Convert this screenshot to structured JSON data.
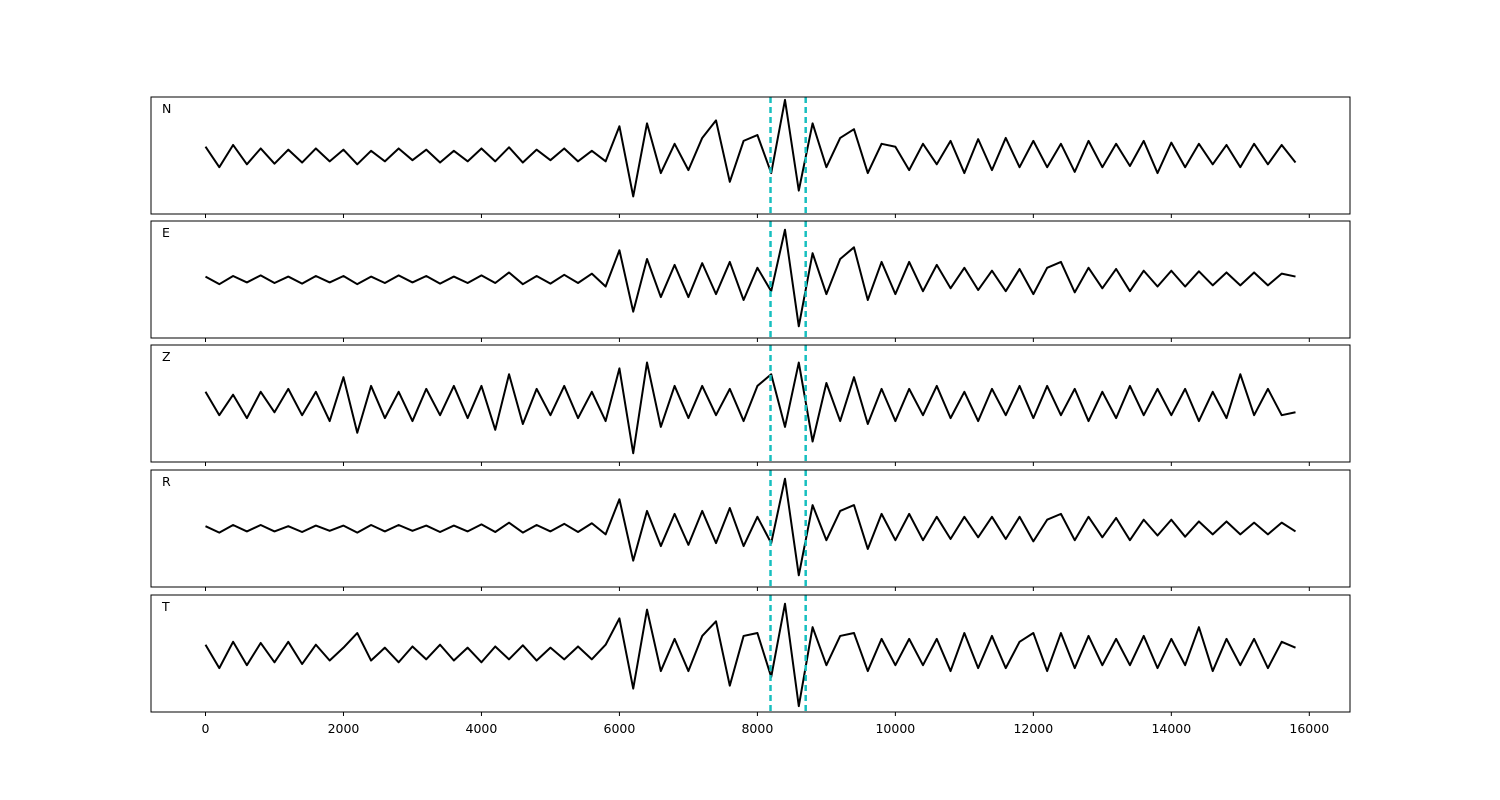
{
  "chart_data": [
    {
      "type": "line",
      "label": "N",
      "color": "#000000",
      "vline_color": "#17bfbf",
      "vlines": [
        8190,
        8700
      ],
      "xlim": [
        -790,
        16590
      ],
      "ylim": [
        -1,
        1
      ],
      "xticks": [
        0,
        2000,
        4000,
        6000,
        8000,
        10000,
        12000,
        14000,
        16000
      ],
      "x": [
        0,
        200,
        400,
        600,
        800,
        1000,
        1200,
        1400,
        1600,
        1800,
        2000,
        2200,
        2400,
        2600,
        2800,
        3000,
        3200,
        3400,
        3600,
        3800,
        4000,
        4200,
        4400,
        4600,
        4800,
        5000,
        5200,
        5400,
        5600,
        5800,
        6000,
        6200,
        6400,
        6600,
        6800,
        7000,
        7200,
        7400,
        7600,
        7800,
        8000,
        8200,
        8400,
        8600,
        8800,
        9000,
        9200,
        9400,
        9600,
        9800,
        10000,
        10200,
        10400,
        10600,
        10800,
        11000,
        11200,
        11400,
        11600,
        11800,
        12000,
        12200,
        12400,
        12600,
        12800,
        13000,
        13200,
        13400,
        13600,
        13800,
        14000,
        14200,
        14400,
        14600,
        14800,
        15000,
        15200,
        15400,
        15600,
        15800
      ],
      "values": [
        0.15,
        -0.2,
        0.18,
        -0.15,
        0.12,
        -0.14,
        0.1,
        -0.12,
        0.12,
        -0.1,
        0.1,
        -0.15,
        0.08,
        -0.1,
        0.12,
        -0.08,
        0.1,
        -0.12,
        0.08,
        -0.1,
        0.12,
        -0.1,
        0.14,
        -0.12,
        0.1,
        -0.08,
        0.12,
        -0.1,
        0.08,
        -0.1,
        0.5,
        -0.7,
        0.55,
        -0.3,
        0.2,
        -0.25,
        0.3,
        0.6,
        -0.45,
        0.25,
        0.35,
        -0.3,
        0.95,
        -0.6,
        0.55,
        -0.2,
        0.3,
        0.45,
        -0.3,
        0.2,
        0.15,
        -0.25,
        0.2,
        -0.15,
        0.25,
        -0.3,
        0.28,
        -0.25,
        0.3,
        -0.2,
        0.25,
        -0.2,
        0.2,
        -0.28,
        0.25,
        -0.2,
        0.2,
        -0.18,
        0.25,
        -0.3,
        0.22,
        -0.2,
        0.2,
        -0.15,
        0.18,
        -0.2,
        0.2,
        -0.15,
        0.18,
        -0.12
      ]
    },
    {
      "type": "line",
      "label": "E",
      "color": "#000000",
      "vline_color": "#17bfbf",
      "vlines": [
        8190,
        8700
      ],
      "xlim": [
        -790,
        16590
      ],
      "ylim": [
        -1,
        1
      ],
      "xticks": [
        0,
        2000,
        4000,
        6000,
        8000,
        10000,
        12000,
        14000,
        16000
      ],
      "x": [
        0,
        200,
        400,
        600,
        800,
        1000,
        1200,
        1400,
        1600,
        1800,
        2000,
        2200,
        2400,
        2600,
        2800,
        3000,
        3200,
        3400,
        3600,
        3800,
        4000,
        4200,
        4400,
        4600,
        4800,
        5000,
        5200,
        5400,
        5600,
        5800,
        6000,
        6200,
        6400,
        6600,
        6800,
        7000,
        7200,
        7400,
        7600,
        7800,
        8000,
        8200,
        8400,
        8600,
        8800,
        9000,
        9200,
        9400,
        9600,
        9800,
        10000,
        10200,
        10400,
        10600,
        10800,
        11000,
        11200,
        11400,
        11600,
        11800,
        12000,
        12200,
        12400,
        12600,
        12800,
        13000,
        13200,
        13400,
        13600,
        13800,
        14000,
        14200,
        14400,
        14600,
        14800,
        15000,
        15200,
        15400,
        15600,
        15800
      ],
      "values": [
        0.05,
        -0.08,
        0.06,
        -0.05,
        0.07,
        -0.06,
        0.05,
        -0.07,
        0.06,
        -0.05,
        0.06,
        -0.08,
        0.05,
        -0.06,
        0.07,
        -0.05,
        0.06,
        -0.07,
        0.05,
        -0.06,
        0.07,
        -0.06,
        0.12,
        -0.08,
        0.06,
        -0.07,
        0.08,
        -0.06,
        0.1,
        -0.12,
        0.5,
        -0.55,
        0.35,
        -0.3,
        0.25,
        -0.3,
        0.28,
        -0.25,
        0.3,
        -0.35,
        0.2,
        -0.2,
        0.85,
        -0.8,
        0.45,
        -0.25,
        0.35,
        0.55,
        -0.35,
        0.3,
        -0.25,
        0.3,
        -0.2,
        0.25,
        -0.15,
        0.2,
        -0.18,
        0.15,
        -0.2,
        0.18,
        -0.25,
        0.2,
        0.3,
        -0.22,
        0.2,
        -0.15,
        0.18,
        -0.2,
        0.15,
        -0.12,
        0.15,
        -0.12,
        0.14,
        -0.1,
        0.12,
        -0.1,
        0.12,
        -0.1,
        0.1,
        0.05
      ]
    },
    {
      "type": "line",
      "label": "Z",
      "color": "#000000",
      "vline_color": "#17bfbf",
      "vlines": [
        8190,
        8700
      ],
      "xlim": [
        -790,
        16590
      ],
      "ylim": [
        -1,
        1
      ],
      "xticks": [
        0,
        2000,
        4000,
        6000,
        8000,
        10000,
        12000,
        14000,
        16000
      ],
      "x": [
        0,
        200,
        400,
        600,
        800,
        1000,
        1200,
        1400,
        1600,
        1800,
        2000,
        2200,
        2400,
        2600,
        2800,
        3000,
        3200,
        3400,
        3600,
        3800,
        4000,
        4200,
        4400,
        4600,
        4800,
        5000,
        5200,
        5400,
        5600,
        5800,
        6000,
        6200,
        6400,
        6600,
        6800,
        7000,
        7200,
        7400,
        7600,
        7800,
        8000,
        8200,
        8400,
        8600,
        8800,
        9000,
        9200,
        9400,
        9600,
        9800,
        10000,
        10200,
        10400,
        10600,
        10800,
        11000,
        11200,
        11400,
        11600,
        11800,
        12000,
        12200,
        12400,
        12600,
        12800,
        13000,
        13200,
        13400,
        13600,
        13800,
        14000,
        14200,
        14400,
        14600,
        14800,
        15000,
        15200,
        15400,
        15600,
        15800
      ],
      "values": [
        0.2,
        -0.2,
        0.15,
        -0.25,
        0.2,
        -0.15,
        0.25,
        -0.2,
        0.2,
        -0.3,
        0.45,
        -0.5,
        0.3,
        -0.25,
        0.2,
        -0.3,
        0.25,
        -0.2,
        0.3,
        -0.25,
        0.3,
        -0.45,
        0.5,
        -0.35,
        0.25,
        -0.2,
        0.3,
        -0.25,
        0.2,
        -0.3,
        0.6,
        -0.85,
        0.7,
        -0.4,
        0.3,
        -0.25,
        0.3,
        -0.2,
        0.25,
        -0.3,
        0.3,
        0.5,
        -0.4,
        0.7,
        -0.65,
        0.35,
        -0.3,
        0.45,
        -0.35,
        0.25,
        -0.3,
        0.25,
        -0.2,
        0.3,
        -0.25,
        0.2,
        -0.3,
        0.25,
        -0.2,
        0.3,
        -0.25,
        0.3,
        -0.2,
        0.25,
        -0.3,
        0.2,
        -0.25,
        0.3,
        -0.2,
        0.25,
        -0.2,
        0.25,
        -0.3,
        0.2,
        -0.25,
        0.5,
        -0.2,
        0.25,
        -0.2,
        -0.15
      ]
    },
    {
      "type": "line",
      "label": "R",
      "color": "#000000",
      "vline_color": "#17bfbf",
      "vlines": [
        8190,
        8700
      ],
      "xlim": [
        -790,
        16590
      ],
      "ylim": [
        -1,
        1
      ],
      "xticks": [
        0,
        2000,
        4000,
        6000,
        8000,
        10000,
        12000,
        14000,
        16000
      ],
      "x": [
        0,
        200,
        400,
        600,
        800,
        1000,
        1200,
        1400,
        1600,
        1800,
        2000,
        2200,
        2400,
        2600,
        2800,
        3000,
        3200,
        3400,
        3600,
        3800,
        4000,
        4200,
        4400,
        4600,
        4800,
        5000,
        5200,
        5400,
        5600,
        5800,
        6000,
        6200,
        6400,
        6600,
        6800,
        7000,
        7200,
        7400,
        7600,
        7800,
        8000,
        8200,
        8400,
        8600,
        8800,
        9000,
        9200,
        9400,
        9600,
        9800,
        10000,
        10200,
        10400,
        10600,
        10800,
        11000,
        11200,
        11400,
        11600,
        11800,
        12000,
        12200,
        12400,
        12600,
        12800,
        13000,
        13200,
        13400,
        13600,
        13800,
        14000,
        14200,
        14400,
        14600,
        14800,
        15000,
        15200,
        15400,
        15600,
        15800
      ],
      "values": [
        0.04,
        -0.07,
        0.06,
        -0.05,
        0.06,
        -0.05,
        0.04,
        -0.06,
        0.05,
        -0.04,
        0.05,
        -0.07,
        0.06,
        -0.05,
        0.06,
        -0.04,
        0.05,
        -0.06,
        0.05,
        -0.05,
        0.07,
        -0.06,
        0.1,
        -0.07,
        0.06,
        -0.05,
        0.08,
        -0.06,
        0.09,
        -0.1,
        0.5,
        -0.55,
        0.3,
        -0.3,
        0.25,
        -0.28,
        0.3,
        -0.25,
        0.35,
        -0.3,
        0.2,
        -0.25,
        0.85,
        -0.8,
        0.4,
        -0.2,
        0.3,
        0.4,
        -0.35,
        0.25,
        -0.2,
        0.25,
        -0.2,
        0.2,
        -0.18,
        0.2,
        -0.15,
        0.2,
        -0.18,
        0.2,
        -0.22,
        0.15,
        0.25,
        -0.2,
        0.2,
        -0.15,
        0.18,
        -0.2,
        0.15,
        -0.12,
        0.15,
        -0.14,
        0.12,
        -0.1,
        0.12,
        -0.1,
        0.1,
        -0.1,
        0.1,
        -0.05
      ]
    },
    {
      "type": "line",
      "label": "T",
      "color": "#000000",
      "vline_color": "#17bfbf",
      "vlines": [
        8190,
        8700
      ],
      "xlim": [
        -790,
        16590
      ],
      "ylim": [
        -1,
        1
      ],
      "xticks": [
        0,
        2000,
        4000,
        6000,
        8000,
        10000,
        12000,
        14000,
        16000
      ],
      "x": [
        0,
        200,
        400,
        600,
        800,
        1000,
        1200,
        1400,
        1600,
        1800,
        2000,
        2200,
        2400,
        2600,
        2800,
        3000,
        3200,
        3400,
        3600,
        3800,
        4000,
        4200,
        4400,
        4600,
        4800,
        5000,
        5200,
        5400,
        5600,
        5800,
        6000,
        6200,
        6400,
        6600,
        6800,
        7000,
        7200,
        7400,
        7600,
        7800,
        8000,
        8200,
        8400,
        8600,
        8800,
        9000,
        9200,
        9400,
        9600,
        9800,
        10000,
        10200,
        10400,
        10600,
        10800,
        11000,
        11200,
        11400,
        11600,
        11800,
        12000,
        12200,
        12400,
        12600,
        12800,
        13000,
        13200,
        13400,
        13600,
        13800,
        14000,
        14200,
        14400,
        14600,
        14800,
        15000,
        15200,
        15400,
        15600,
        15800
      ],
      "values": [
        0.15,
        -0.25,
        0.2,
        -0.2,
        0.18,
        -0.15,
        0.2,
        -0.18,
        0.15,
        -0.12,
        0.1,
        0.35,
        -0.12,
        0.1,
        -0.15,
        0.12,
        -0.1,
        0.15,
        -0.12,
        0.1,
        -0.15,
        0.12,
        -0.1,
        0.14,
        -0.12,
        0.1,
        -0.1,
        0.12,
        -0.1,
        0.15,
        0.6,
        -0.6,
        0.75,
        -0.3,
        0.25,
        -0.3,
        0.3,
        0.55,
        -0.55,
        0.3,
        0.35,
        -0.4,
        0.85,
        -0.9,
        0.45,
        -0.2,
        0.3,
        0.35,
        -0.3,
        0.25,
        -0.2,
        0.25,
        -0.2,
        0.25,
        -0.3,
        0.35,
        -0.25,
        0.3,
        -0.25,
        0.2,
        0.35,
        -0.3,
        0.35,
        -0.25,
        0.3,
        -0.2,
        0.25,
        -0.2,
        0.3,
        -0.25,
        0.25,
        -0.2,
        0.45,
        -0.3,
        0.25,
        -0.2,
        0.25,
        -0.25,
        0.2,
        0.1
      ]
    }
  ]
}
